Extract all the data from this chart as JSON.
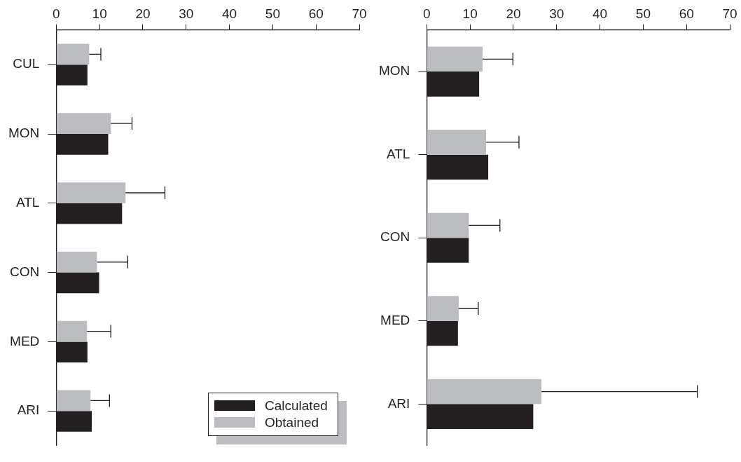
{
  "chart_data": [
    {
      "type": "bar",
      "orientation": "horizontal",
      "categories": [
        "CUL",
        "MON",
        "ATL",
        "CON",
        "MED",
        "ARI"
      ],
      "series": [
        {
          "name": "Calculated",
          "color": "#231f20",
          "values": [
            7.2,
            12.0,
            15.2,
            9.9,
            7.2,
            8.2
          ]
        },
        {
          "name": "Obtained",
          "color": "#bcbdc0",
          "values": [
            7.6,
            12.6,
            16.0,
            9.4,
            7.1,
            7.9
          ],
          "errors": [
            [
              7.6,
              10.3
            ],
            [
              12.6,
              17.5
            ],
            [
              16.0,
              25.1
            ],
            [
              9.4,
              16.5
            ],
            [
              7.1,
              12.6
            ],
            [
              7.9,
              12.3
            ]
          ]
        }
      ],
      "xlim": [
        0,
        70
      ],
      "xticks": [
        0,
        10,
        20,
        30,
        40,
        50,
        60,
        70
      ],
      "legend": "bottom right"
    },
    {
      "type": "bar",
      "orientation": "horizontal",
      "categories": [
        "MON",
        "ATL",
        "CON",
        "MED",
        "ARI"
      ],
      "series": [
        {
          "color": "#231f20",
          "values": [
            12.1,
            14.2,
            9.7,
            7.2,
            24.6
          ]
        },
        {
          "color": "#bcbdc0",
          "values": [
            12.9,
            13.7,
            9.7,
            7.4,
            26.5
          ],
          "errors": [
            [
              12.9,
              19.9
            ],
            [
              13.7,
              21.3
            ],
            [
              9.7,
              16.9
            ],
            [
              7.4,
              11.9
            ],
            [
              26.5,
              62.5
            ]
          ]
        }
      ],
      "xlim": [
        0,
        70
      ],
      "xticks": [
        0,
        10,
        20,
        30,
        40,
        50,
        60,
        70
      ]
    }
  ]
}
